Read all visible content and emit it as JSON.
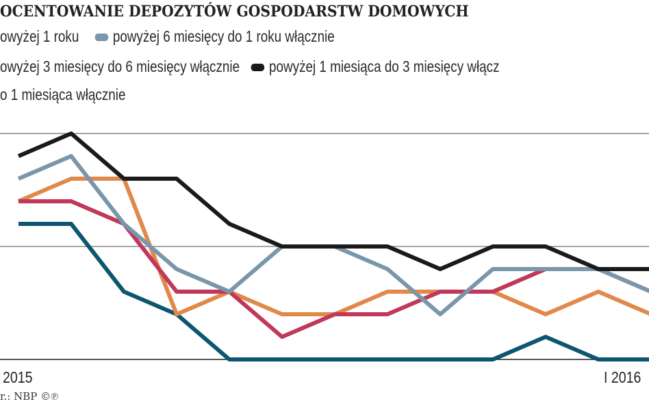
{
  "chart_data": {
    "type": "line",
    "title": "OCENTOWANIE DEPOZYTÓW GOSPODARSTW DOMOWYCH",
    "x_tick_labels": [
      {
        "index": 0,
        "label": "2015"
      },
      {
        "index": 11,
        "label": "I 2016"
      }
    ],
    "ylim": [
      0,
      2
    ],
    "y_gridlines": [
      0,
      1,
      2
    ],
    "grid": true,
    "legend_placement": "top",
    "series": [
      {
        "name": "owyżej 1 roku",
        "color": "#e0894a",
        "values": [
          1.4,
          1.6,
          1.6,
          0.4,
          0.6,
          0.4,
          0.4,
          0.6,
          0.6,
          0.6,
          0.4,
          0.6,
          0.4
        ]
      },
      {
        "name": "powyżej 6 miesięcy do 1 roku włącznie",
        "color": "#7a96aa",
        "values": [
          1.6,
          1.8,
          1.2,
          0.8,
          0.6,
          1.0,
          1.0,
          0.8,
          0.4,
          0.8,
          0.8,
          0.8,
          0.6
        ]
      },
      {
        "name": "owyżej 3 miesięcy do 6 miesięcy włącznie",
        "color": "#c0385a",
        "values": [
          1.4,
          1.4,
          1.2,
          0.6,
          0.6,
          0.2,
          0.4,
          0.4,
          0.6,
          0.6,
          0.8,
          0.8,
          0.6
        ]
      },
      {
        "name": "powyżej 1 miesiąca do 3 miesięcy włącz",
        "color": "#1a1a1a",
        "values": [
          1.8,
          2.0,
          1.6,
          1.6,
          1.2,
          1.0,
          1.0,
          1.0,
          0.8,
          1.0,
          1.0,
          0.8,
          0.8
        ]
      },
      {
        "name": "o 1 miesiąca włącznie",
        "color": "#0d5670",
        "values": [
          1.2,
          1.2,
          0.6,
          0.4,
          0.0,
          0.0,
          0.0,
          0.0,
          0.0,
          0.0,
          0.2,
          0.0,
          0.0
        ]
      }
    ],
    "source": "r.: NBP ©℗"
  }
}
